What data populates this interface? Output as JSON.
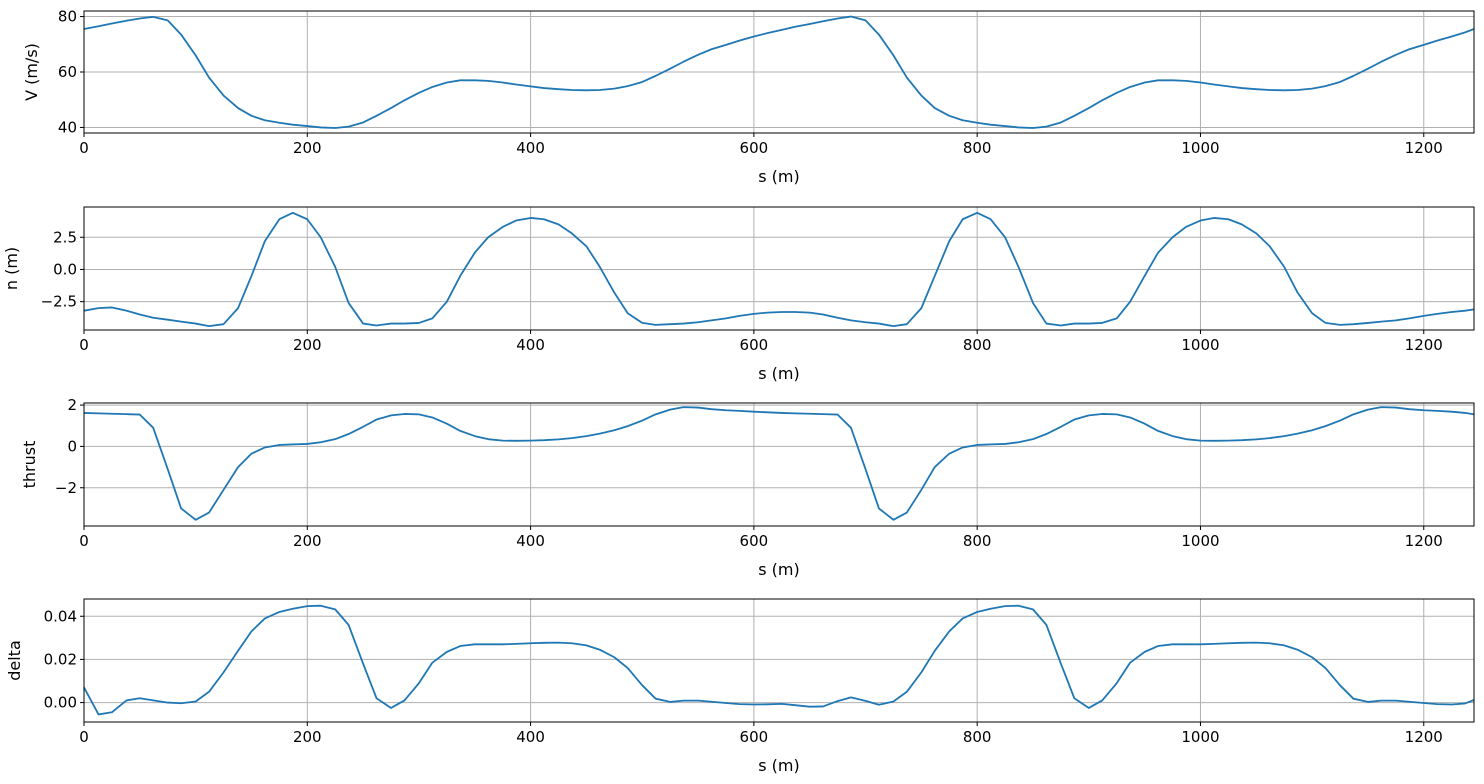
{
  "chart_data": [
    {
      "type": "line",
      "xlabel": "s (m)",
      "ylabel": "V (m/s)",
      "xlim": [
        0,
        1245
      ],
      "ylim": [
        38,
        82
      ],
      "xticks": [
        0,
        200,
        400,
        600,
        800,
        1000,
        1200
      ],
      "yticks": [
        40,
        60,
        80
      ],
      "grid": true,
      "color": "#1f77b4",
      "series": [
        {
          "x": [
            0,
            13,
            25,
            38,
            50,
            62,
            75,
            87,
            100,
            112,
            125,
            138,
            150,
            162,
            175,
            187,
            200,
            212,
            225,
            237,
            250,
            262,
            275,
            287,
            300,
            312,
            325,
            337,
            350,
            362,
            375,
            387,
            400,
            412,
            425,
            437,
            450,
            462,
            475,
            487,
            500,
            512,
            525,
            537,
            550,
            562,
            575,
            587,
            600,
            612,
            625,
            637,
            650,
            662,
            675,
            687,
            700,
            712,
            725,
            737,
            750,
            762,
            775,
            787,
            800,
            812,
            825,
            837,
            850,
            862,
            875,
            887,
            900,
            912,
            925,
            937,
            950,
            962,
            975,
            987,
            1000,
            1012,
            1025,
            1037,
            1050,
            1062,
            1075,
            1087,
            1100,
            1112,
            1125,
            1137,
            1150,
            1162,
            1175,
            1187,
            1200,
            1212,
            1225,
            1237,
            1245
          ],
          "y": [
            75.5,
            76.5,
            77.5,
            78.5,
            79.3,
            79.9,
            78.6,
            73.5,
            66,
            58,
            51.5,
            47,
            44.2,
            42.6,
            41.7,
            41,
            40.5,
            40,
            39.8,
            40.3,
            41.8,
            44.2,
            47,
            49.8,
            52.5,
            54.6,
            56.2,
            57,
            57,
            56.8,
            56.2,
            55.5,
            54.8,
            54.2,
            53.8,
            53.5,
            53.4,
            53.5,
            54,
            54.9,
            56.4,
            58.6,
            61.2,
            63.7,
            66.2,
            68.2,
            69.8,
            71.3,
            72.8,
            74,
            75.2,
            76.3,
            77.3,
            78.3,
            79.3,
            80,
            78.6,
            73.5,
            66,
            58,
            51.5,
            47,
            44.2,
            42.6,
            41.7,
            41,
            40.5,
            40,
            39.8,
            40.3,
            41.8,
            44.2,
            47,
            49.8,
            52.5,
            54.6,
            56.2,
            57,
            57,
            56.8,
            56.2,
            55.5,
            54.8,
            54.2,
            53.8,
            53.5,
            53.4,
            53.5,
            54,
            54.9,
            56.4,
            58.6,
            61.2,
            63.7,
            66.2,
            68.2,
            69.8,
            71.3,
            72.8,
            74.3,
            75.5
          ]
        }
      ]
    },
    {
      "type": "line",
      "xlabel": "s (m)",
      "ylabel": "n (m)",
      "xlim": [
        0,
        1245
      ],
      "ylim": [
        -4.7,
        4.85
      ],
      "xticks": [
        0,
        200,
        400,
        600,
        800,
        1000,
        1200
      ],
      "yticks": [
        -2.5,
        0.0,
        2.5
      ],
      "ytick_labels": [
        "−2.5",
        "0.0",
        "2.5"
      ],
      "grid": true,
      "color": "#1f77b4",
      "series": [
        {
          "x": [
            0,
            13,
            25,
            38,
            50,
            62,
            75,
            87,
            100,
            112,
            125,
            138,
            150,
            162,
            175,
            187,
            200,
            212,
            225,
            237,
            250,
            262,
            275,
            287,
            300,
            312,
            325,
            337,
            350,
            362,
            375,
            387,
            400,
            412,
            425,
            437,
            450,
            462,
            475,
            487,
            500,
            512,
            525,
            537,
            550,
            562,
            575,
            587,
            600,
            612,
            625,
            637,
            650,
            662,
            675,
            687,
            700,
            712,
            725,
            737,
            750,
            762,
            775,
            787,
            800,
            812,
            825,
            837,
            850,
            862,
            875,
            887,
            900,
            912,
            925,
            937,
            950,
            962,
            975,
            987,
            1000,
            1012,
            1025,
            1037,
            1050,
            1062,
            1075,
            1087,
            1100,
            1112,
            1125,
            1137,
            1150,
            1162,
            1175,
            1187,
            1200,
            1212,
            1225,
            1237,
            1245
          ],
          "y": [
            -3.2,
            -3.0,
            -2.95,
            -3.2,
            -3.5,
            -3.75,
            -3.9,
            -4.05,
            -4.2,
            -4.4,
            -4.25,
            -3.0,
            -0.5,
            2.2,
            3.9,
            4.4,
            3.9,
            2.5,
            0.2,
            -2.6,
            -4.2,
            -4.35,
            -4.2,
            -4.2,
            -4.15,
            -3.8,
            -2.5,
            -0.5,
            1.3,
            2.5,
            3.3,
            3.8,
            4.0,
            3.9,
            3.5,
            2.8,
            1.8,
            0.2,
            -1.8,
            -3.4,
            -4.15,
            -4.3,
            -4.25,
            -4.2,
            -4.1,
            -3.95,
            -3.8,
            -3.6,
            -3.45,
            -3.35,
            -3.3,
            -3.3,
            -3.35,
            -3.5,
            -3.75,
            -3.95,
            -4.1,
            -4.2,
            -4.4,
            -4.25,
            -3.0,
            -0.5,
            2.2,
            3.9,
            4.4,
            3.9,
            2.5,
            0.2,
            -2.6,
            -4.2,
            -4.35,
            -4.2,
            -4.2,
            -4.15,
            -3.8,
            -2.5,
            -0.5,
            1.3,
            2.5,
            3.3,
            3.8,
            4.0,
            3.9,
            3.5,
            2.8,
            1.8,
            0.2,
            -1.8,
            -3.4,
            -4.15,
            -4.3,
            -4.25,
            -4.15,
            -4.05,
            -3.95,
            -3.8,
            -3.6,
            -3.45,
            -3.3,
            -3.2,
            -3.1
          ]
        }
      ]
    },
    {
      "type": "line",
      "xlabel": "s (m)",
      "ylabel": "thrust",
      "xlim": [
        0,
        1245
      ],
      "ylim": [
        -3.85,
        2.1
      ],
      "xticks": [
        0,
        200,
        400,
        600,
        800,
        1000,
        1200
      ],
      "yticks": [
        -2,
        0,
        2
      ],
      "ytick_labels": [
        "−2",
        "0",
        "2"
      ],
      "grid": true,
      "color": "#1f77b4",
      "series": [
        {
          "x": [
            0,
            13,
            25,
            38,
            50,
            62,
            75,
            87,
            100,
            112,
            125,
            138,
            150,
            162,
            175,
            187,
            200,
            212,
            225,
            237,
            250,
            262,
            275,
            287,
            300,
            312,
            325,
            337,
            350,
            362,
            375,
            387,
            400,
            412,
            425,
            437,
            450,
            462,
            475,
            487,
            500,
            512,
            525,
            537,
            550,
            562,
            575,
            587,
            600,
            612,
            625,
            637,
            650,
            662,
            675,
            687,
            700,
            712,
            725,
            737,
            750,
            762,
            775,
            787,
            800,
            812,
            825,
            837,
            850,
            862,
            875,
            887,
            900,
            912,
            925,
            937,
            950,
            962,
            975,
            987,
            1000,
            1012,
            1025,
            1037,
            1050,
            1062,
            1075,
            1087,
            1100,
            1112,
            1125,
            1137,
            1150,
            1162,
            1175,
            1187,
            1200,
            1212,
            1225,
            1237,
            1245
          ],
          "y": [
            1.62,
            1.6,
            1.58,
            1.56,
            1.54,
            0.9,
            -1.1,
            -3.0,
            -3.55,
            -3.2,
            -2.1,
            -1.0,
            -0.35,
            -0.05,
            0.07,
            0.1,
            0.12,
            0.2,
            0.35,
            0.6,
            0.95,
            1.3,
            1.5,
            1.57,
            1.55,
            1.4,
            1.1,
            0.75,
            0.5,
            0.35,
            0.28,
            0.27,
            0.28,
            0.3,
            0.34,
            0.4,
            0.5,
            0.62,
            0.78,
            0.98,
            1.25,
            1.55,
            1.78,
            1.9,
            1.88,
            1.8,
            1.75,
            1.72,
            1.68,
            1.65,
            1.62,
            1.6,
            1.58,
            1.56,
            1.54,
            0.9,
            -1.1,
            -3.0,
            -3.55,
            -3.2,
            -2.1,
            -1.0,
            -0.35,
            -0.05,
            0.07,
            0.1,
            0.12,
            0.2,
            0.35,
            0.6,
            0.95,
            1.3,
            1.5,
            1.57,
            1.55,
            1.4,
            1.1,
            0.75,
            0.5,
            0.35,
            0.28,
            0.27,
            0.28,
            0.3,
            0.34,
            0.4,
            0.5,
            0.62,
            0.78,
            0.98,
            1.25,
            1.55,
            1.78,
            1.9,
            1.88,
            1.8,
            1.75,
            1.72,
            1.68,
            1.62,
            1.55
          ]
        }
      ]
    },
    {
      "type": "line",
      "xlabel": "s (m)",
      "ylabel": "delta",
      "xlim": [
        0,
        1245
      ],
      "ylim": [
        -0.009,
        0.048
      ],
      "xticks": [
        0,
        200,
        400,
        600,
        800,
        1000,
        1200
      ],
      "yticks": [
        0.0,
        0.02,
        0.04
      ],
      "ytick_labels": [
        "0.00",
        "0.02",
        "0.04"
      ],
      "grid": true,
      "color": "#1f77b4",
      "series": [
        {
          "x": [
            0,
            13,
            25,
            38,
            50,
            62,
            75,
            87,
            100,
            112,
            125,
            138,
            150,
            162,
            175,
            187,
            200,
            212,
            225,
            237,
            250,
            262,
            275,
            287,
            300,
            312,
            325,
            337,
            350,
            362,
            375,
            387,
            400,
            412,
            425,
            437,
            450,
            462,
            475,
            487,
            500,
            512,
            525,
            537,
            550,
            562,
            575,
            587,
            600,
            612,
            625,
            637,
            650,
            662,
            675,
            687,
            700,
            712,
            725,
            737,
            750,
            762,
            775,
            787,
            800,
            812,
            825,
            837,
            850,
            862,
            875,
            887,
            900,
            912,
            925,
            937,
            950,
            962,
            975,
            987,
            1000,
            1012,
            1025,
            1037,
            1050,
            1062,
            1075,
            1087,
            1100,
            1112,
            1125,
            1137,
            1150,
            1162,
            1175,
            1187,
            1200,
            1212,
            1225,
            1237,
            1245
          ],
          "y": [
            0.007,
            -0.0055,
            -0.0045,
            0.001,
            0.002,
            0.001,
            0.0,
            -0.0003,
            0.0005,
            0.005,
            0.014,
            0.024,
            0.033,
            0.039,
            0.042,
            0.0435,
            0.0447,
            0.0449,
            0.0432,
            0.036,
            0.018,
            0.002,
            -0.0025,
            0.001,
            0.009,
            0.0185,
            0.0235,
            0.0262,
            0.027,
            0.027,
            0.027,
            0.0272,
            0.0275,
            0.0277,
            0.0278,
            0.0275,
            0.0265,
            0.0245,
            0.021,
            0.016,
            0.008,
            0.0018,
            0.0003,
            0.0009,
            0.0009,
            0.0004,
            -0.0002,
            -0.0007,
            -0.0009,
            -0.0008,
            -0.0006,
            -0.0012,
            -0.0019,
            -0.0018,
            0.0007,
            0.0024,
            0.0008,
            -0.001,
            0.0005,
            0.005,
            0.014,
            0.024,
            0.033,
            0.039,
            0.042,
            0.0435,
            0.0447,
            0.0449,
            0.0432,
            0.036,
            0.018,
            0.002,
            -0.0025,
            0.001,
            0.009,
            0.0185,
            0.0235,
            0.0262,
            0.027,
            0.027,
            0.027,
            0.0272,
            0.0275,
            0.0277,
            0.0278,
            0.0275,
            0.0265,
            0.0245,
            0.021,
            0.016,
            0.008,
            0.0018,
            0.0003,
            0.0009,
            0.0009,
            0.0004,
            -0.0002,
            -0.0007,
            -0.0009,
            -0.0004,
            0.0012
          ]
        }
      ]
    }
  ]
}
